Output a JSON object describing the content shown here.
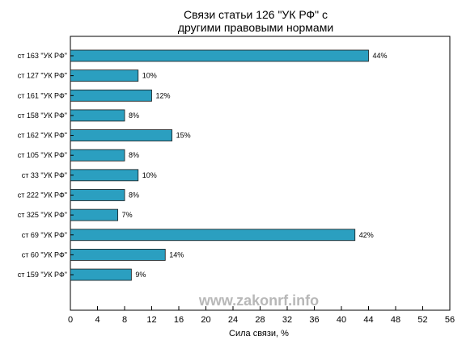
{
  "chart_data": {
    "type": "bar",
    "orientation": "horizontal",
    "title_lines": [
      "Связи статьи 126 \"УК РФ\" с",
      "другими правовыми нормами"
    ],
    "xlabel": "Сила связи, %",
    "ylabel": "",
    "xlim": [
      0,
      56
    ],
    "xticks": [
      0,
      4,
      8,
      12,
      16,
      20,
      24,
      28,
      32,
      36,
      40,
      44,
      48,
      52,
      56
    ],
    "categories": [
      "ст 163 \"УК РФ\"",
      "ст 127 \"УК РФ\"",
      "ст 161 \"УК РФ\"",
      "ст 158 \"УК РФ\"",
      "ст 162 \"УК РФ\"",
      "ст 105 \"УК РФ\"",
      "ст 33 \"УК РФ\"",
      "ст 222 \"УК РФ\"",
      "ст 325 \"УК РФ\"",
      "ст 69 \"УК РФ\"",
      "ст 60 \"УК РФ\"",
      "ст 159 \"УК РФ\""
    ],
    "values": [
      44,
      10,
      12,
      8,
      15,
      8,
      10,
      8,
      7,
      42,
      14,
      9
    ],
    "value_labels": [
      "44%",
      "10%",
      "12%",
      "8%",
      "15%",
      "8%",
      "10%",
      "8%",
      "7%",
      "42%",
      "14%",
      "9%"
    ],
    "grid": false,
    "bar_color": "#2b9fc0",
    "bar_edge_color": "#1a1a1a"
  },
  "watermark": "www.zakonrf.info"
}
